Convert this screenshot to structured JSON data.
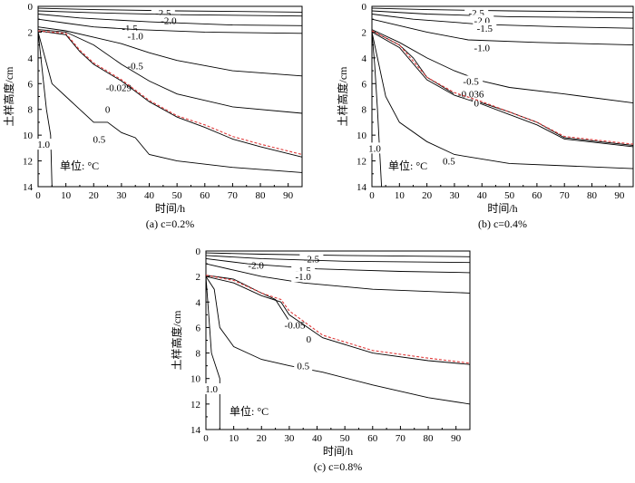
{
  "chart_data": [
    {
      "type": "line",
      "caption": "(a) c=0.2%",
      "xlabel": "时间/h",
      "ylabel": "土样高度/cm",
      "xlim": [
        0,
        95
      ],
      "ylim": [
        0,
        14
      ],
      "y_inverted": true,
      "xticks": [
        "0",
        "10",
        "20",
        "30",
        "40",
        "50",
        "60",
        "70",
        "80",
        "90"
      ],
      "yticks": [
        "0",
        "2",
        "4",
        "6",
        "8",
        "10",
        "12",
        "14"
      ],
      "unit_note": "单位: °C",
      "series": [
        {
          "label": "-2.5",
          "color": "#000000",
          "label_at": [
            45,
            0.5
          ],
          "points": [
            [
              0,
              0.15
            ],
            [
              20,
              0.25
            ],
            [
              50,
              0.35
            ],
            [
              95,
              0.45
            ]
          ]
        },
        {
          "label": "-2.0",
          "color": "#000000",
          "label_at": [
            47,
            1.1
          ],
          "points": [
            [
              0,
              0.35
            ],
            [
              20,
              0.5
            ],
            [
              50,
              0.65
            ],
            [
              95,
              0.75
            ]
          ]
        },
        {
          "label": "-1.5",
          "color": "#000000",
          "label_at": [
            33,
            1.7
          ],
          "points": [
            [
              0,
              0.6
            ],
            [
              15,
              0.9
            ],
            [
              40,
              1.2
            ],
            [
              70,
              1.45
            ],
            [
              95,
              1.5
            ]
          ]
        },
        {
          "label": "-1.0",
          "color": "#000000",
          "label_at": [
            35,
            2.3
          ],
          "points": [
            [
              0,
              1.0
            ],
            [
              10,
              1.3
            ],
            [
              20,
              1.6
            ],
            [
              35,
              1.8
            ],
            [
              60,
              2.0
            ],
            [
              95,
              2.1
            ]
          ]
        },
        {
          "label": "-0.5",
          "color": "#000000",
          "label_at": [
            35,
            4.6
          ],
          "points": [
            [
              0,
              1.6
            ],
            [
              10,
              1.9
            ],
            [
              20,
              2.4
            ],
            [
              30,
              2.9
            ],
            [
              40,
              3.6
            ],
            [
              50,
              4.2
            ],
            [
              70,
              5.0
            ],
            [
              95,
              5.4
            ]
          ]
        },
        {
          "label": "-0.029",
          "color": "#000000",
          "label_at": [
            29,
            6.3
          ],
          "points": [
            [
              0,
              1.8
            ],
            [
              10,
              2.0
            ],
            [
              20,
              3.0
            ],
            [
              30,
              4.5
            ],
            [
              40,
              5.8
            ],
            [
              50,
              6.8
            ],
            [
              70,
              7.8
            ],
            [
              95,
              8.3
            ]
          ]
        },
        {
          "label": "0",
          "color": "#000000",
          "label_at": [
            25,
            8.0
          ],
          "points": [
            [
              0,
              1.9
            ],
            [
              10,
              2.2
            ],
            [
              15,
              3.5
            ],
            [
              20,
              4.5
            ],
            [
              30,
              5.8
            ],
            [
              40,
              7.4
            ],
            [
              50,
              8.6
            ],
            [
              60,
              9.4
            ],
            [
              70,
              10.3
            ],
            [
              80,
              10.9
            ],
            [
              95,
              11.7
            ]
          ]
        },
        {
          "label": "",
          "color": "#e03a3a",
          "dashed": true,
          "points": [
            [
              0,
              1.9
            ],
            [
              10,
              2.1
            ],
            [
              15,
              3.4
            ],
            [
              20,
              4.4
            ],
            [
              30,
              5.7
            ],
            [
              40,
              7.3
            ],
            [
              50,
              8.5
            ],
            [
              60,
              9.2
            ],
            [
              70,
              10.1
            ],
            [
              80,
              10.7
            ],
            [
              95,
              11.5
            ]
          ]
        },
        {
          "label": "0.5",
          "color": "#000000",
          "label_at": [
            22,
            10.3
          ],
          "points": [
            [
              0,
              2.0
            ],
            [
              5,
              6.0
            ],
            [
              10,
              7.0
            ],
            [
              15,
              8.0
            ],
            [
              20,
              9.0
            ],
            [
              25,
              9.0
            ],
            [
              30,
              9.8
            ],
            [
              35,
              10.2
            ],
            [
              40,
              11.5
            ],
            [
              50,
              12.0
            ],
            [
              70,
              12.5
            ],
            [
              95,
              12.9
            ]
          ]
        },
        {
          "label": "1.0",
          "color": "#000000",
          "label_at": [
            2,
            10.7
          ],
          "points": [
            [
              0,
              2.0
            ],
            [
              1,
              4.0
            ],
            [
              3,
              8.0
            ],
            [
              4.5,
              10.0
            ],
            [
              5,
              14.0
            ]
          ]
        }
      ]
    },
    {
      "type": "line",
      "caption": "(b) c=0.4%",
      "xlabel": "时间/h",
      "ylabel": "土样高度/cm",
      "xlim": [
        0,
        95
      ],
      "ylim": [
        0,
        14
      ],
      "y_inverted": true,
      "xticks": [
        "0",
        "10",
        "20",
        "30",
        "40",
        "50",
        "60",
        "70",
        "80",
        "90"
      ],
      "yticks": [
        "0",
        "2",
        "4",
        "6",
        "8",
        "10",
        "12",
        "14"
      ],
      "unit_note": "单位: °C",
      "series": [
        {
          "label": "-2.5",
          "color": "#000000",
          "label_at": [
            38,
            0.5
          ],
          "points": [
            [
              0,
              0.15
            ],
            [
              20,
              0.25
            ],
            [
              50,
              0.35
            ],
            [
              95,
              0.45
            ]
          ]
        },
        {
          "label": "-2.0",
          "color": "#000000",
          "label_at": [
            40,
            1.1
          ],
          "points": [
            [
              0,
              0.35
            ],
            [
              20,
              0.6
            ],
            [
              50,
              0.8
            ],
            [
              95,
              0.9
            ]
          ]
        },
        {
          "label": "-1.5",
          "color": "#000000",
          "label_at": [
            41,
            1.7
          ],
          "points": [
            [
              0,
              0.6
            ],
            [
              15,
              1.0
            ],
            [
              40,
              1.4
            ],
            [
              70,
              1.6
            ],
            [
              95,
              1.7
            ]
          ]
        },
        {
          "label": "-1.0",
          "color": "#000000",
          "label_at": [
            40,
            3.2
          ],
          "points": [
            [
              0,
              1.0
            ],
            [
              10,
              1.5
            ],
            [
              20,
              2.0
            ],
            [
              35,
              2.6
            ],
            [
              60,
              2.8
            ],
            [
              95,
              3.0
            ]
          ]
        },
        {
          "label": "-0.5",
          "color": "#000000",
          "label_at": [
            36,
            5.8
          ],
          "points": [
            [
              0,
              1.8
            ],
            [
              10,
              2.8
            ],
            [
              20,
              4.0
            ],
            [
              30,
              5.0
            ],
            [
              40,
              5.8
            ],
            [
              50,
              6.3
            ],
            [
              70,
              6.8
            ],
            [
              95,
              7.5
            ]
          ]
        },
        {
          "label": "-0.036",
          "color": "#000000",
          "label_at": [
            36,
            6.8
          ],
          "points": [
            [
              0,
              1.9
            ],
            [
              10,
              3.0
            ],
            [
              15,
              4.0
            ],
            [
              20,
              5.5
            ],
            [
              30,
              6.8
            ],
            [
              40,
              7.5
            ],
            [
              50,
              8.2
            ],
            [
              60,
              9.0
            ],
            [
              70,
              10.2
            ],
            [
              95,
              10.8
            ]
          ]
        },
        {
          "label": "0",
          "color": "#000000",
          "label_at": [
            38,
            7.5
          ],
          "points": [
            [
              0,
              2.0
            ],
            [
              10,
              3.2
            ],
            [
              20,
              5.7
            ],
            [
              30,
              6.9
            ],
            [
              40,
              7.6
            ],
            [
              50,
              8.4
            ],
            [
              60,
              9.2
            ],
            [
              70,
              10.3
            ],
            [
              95,
              10.9
            ]
          ]
        },
        {
          "label": "",
          "color": "#e03a3a",
          "dashed": true,
          "points": [
            [
              0,
              1.9
            ],
            [
              10,
              3.0
            ],
            [
              20,
              5.5
            ],
            [
              30,
              6.7
            ],
            [
              40,
              7.4
            ],
            [
              50,
              8.2
            ],
            [
              60,
              9.0
            ],
            [
              70,
              10.1
            ],
            [
              95,
              10.7
            ]
          ]
        },
        {
          "label": "0.5",
          "color": "#000000",
          "label_at": [
            28,
            12.0
          ],
          "points": [
            [
              0,
              2.0
            ],
            [
              2,
              4.0
            ],
            [
              5,
              7.0
            ],
            [
              10,
              9.0
            ],
            [
              20,
              10.5
            ],
            [
              30,
              11.5
            ],
            [
              50,
              12.2
            ],
            [
              95,
              12.6
            ]
          ]
        },
        {
          "label": "1.0",
          "color": "#000000",
          "label_at": [
            1,
            11.0
          ],
          "points": [
            [
              0,
              2.0
            ],
            [
              1,
              4.5
            ],
            [
              2,
              8.0
            ],
            [
              3,
              12.0
            ],
            [
              3.5,
              14.0
            ]
          ]
        }
      ]
    },
    {
      "type": "line",
      "caption": "(c) c=0.8%",
      "xlabel": "时间/h",
      "ylabel": "土样高度/cm",
      "xlim": [
        0,
        95
      ],
      "ylim": [
        0,
        14
      ],
      "y_inverted": true,
      "xticks": [
        "0",
        "10",
        "20",
        "30",
        "40",
        "50",
        "60",
        "70",
        "80",
        "90"
      ],
      "yticks": [
        "0",
        "2",
        "4",
        "6",
        "8",
        "10",
        "12",
        "14"
      ],
      "unit_note": "单位: °C",
      "series": [
        {
          "label": "-2.5",
          "color": "#000000",
          "label_at": [
            38,
            0.6
          ],
          "points": [
            [
              0,
              0.15
            ],
            [
              20,
              0.25
            ],
            [
              50,
              0.35
            ],
            [
              95,
              0.45
            ]
          ]
        },
        {
          "label": "-2.0",
          "color": "#000000",
          "label_at": [
            18,
            1.1
          ],
          "points": [
            [
              0,
              0.35
            ],
            [
              20,
              0.6
            ],
            [
              50,
              0.8
            ],
            [
              95,
              0.9
            ]
          ]
        },
        {
          "label": "-1.5",
          "color": "#000000",
          "label_at": [
            35,
            1.5
          ],
          "points": [
            [
              0,
              0.6
            ],
            [
              15,
              1.0
            ],
            [
              40,
              1.4
            ],
            [
              70,
              1.6
            ],
            [
              95,
              1.7
            ]
          ]
        },
        {
          "label": "-1.0",
          "color": "#000000",
          "label_at": [
            35,
            2.0
          ],
          "points": [
            [
              0,
              1.0
            ],
            [
              10,
              1.5
            ],
            [
              20,
              2.0
            ],
            [
              35,
              2.5
            ],
            [
              60,
              3.0
            ],
            [
              95,
              3.3
            ]
          ]
        },
        {
          "label": "-0.05",
          "color": "#000000",
          "label_at": [
            32,
            5.8
          ],
          "points": [
            [
              0,
              1.9
            ],
            [
              10,
              2.2
            ],
            [
              20,
              3.3
            ],
            [
              25,
              3.8
            ],
            [
              30,
              5.5
            ]
          ]
        },
        {
          "label": "0",
          "color": "#000000",
          "label_at": [
            37,
            6.9
          ],
          "points": [
            [
              0,
              2.0
            ],
            [
              10,
              2.5
            ],
            [
              20,
              3.5
            ],
            [
              27,
              4.0
            ],
            [
              30,
              5.0
            ],
            [
              42,
              6.8
            ],
            [
              60,
              8.0
            ],
            [
              80,
              8.6
            ],
            [
              95,
              8.9
            ]
          ]
        },
        {
          "label": "",
          "color": "#e03a3a",
          "dashed": true,
          "points": [
            [
              0,
              1.9
            ],
            [
              10,
              2.3
            ],
            [
              20,
              3.3
            ],
            [
              27,
              3.8
            ],
            [
              30,
              4.7
            ],
            [
              42,
              6.6
            ],
            [
              60,
              7.8
            ],
            [
              80,
              8.4
            ],
            [
              95,
              8.8
            ]
          ]
        },
        {
          "label": "0.5",
          "color": "#000000",
          "label_at": [
            35,
            9.0
          ],
          "points": [
            [
              0,
              2.0
            ],
            [
              3,
              3.0
            ],
            [
              5,
              6.0
            ],
            [
              10,
              7.5
            ],
            [
              20,
              8.5
            ],
            [
              30,
              9.0
            ],
            [
              42,
              9.5
            ],
            [
              60,
              10.5
            ],
            [
              80,
              11.5
            ],
            [
              95,
              12.0
            ]
          ]
        },
        {
          "label": "1.0",
          "color": "#000000",
          "label_at": [
            2,
            10.8
          ],
          "points": [
            [
              0,
              2.0
            ],
            [
              1,
              5.0
            ],
            [
              2,
              8.0
            ],
            [
              5,
              10.0
            ],
            [
              5,
              14.0
            ]
          ]
        }
      ]
    }
  ]
}
